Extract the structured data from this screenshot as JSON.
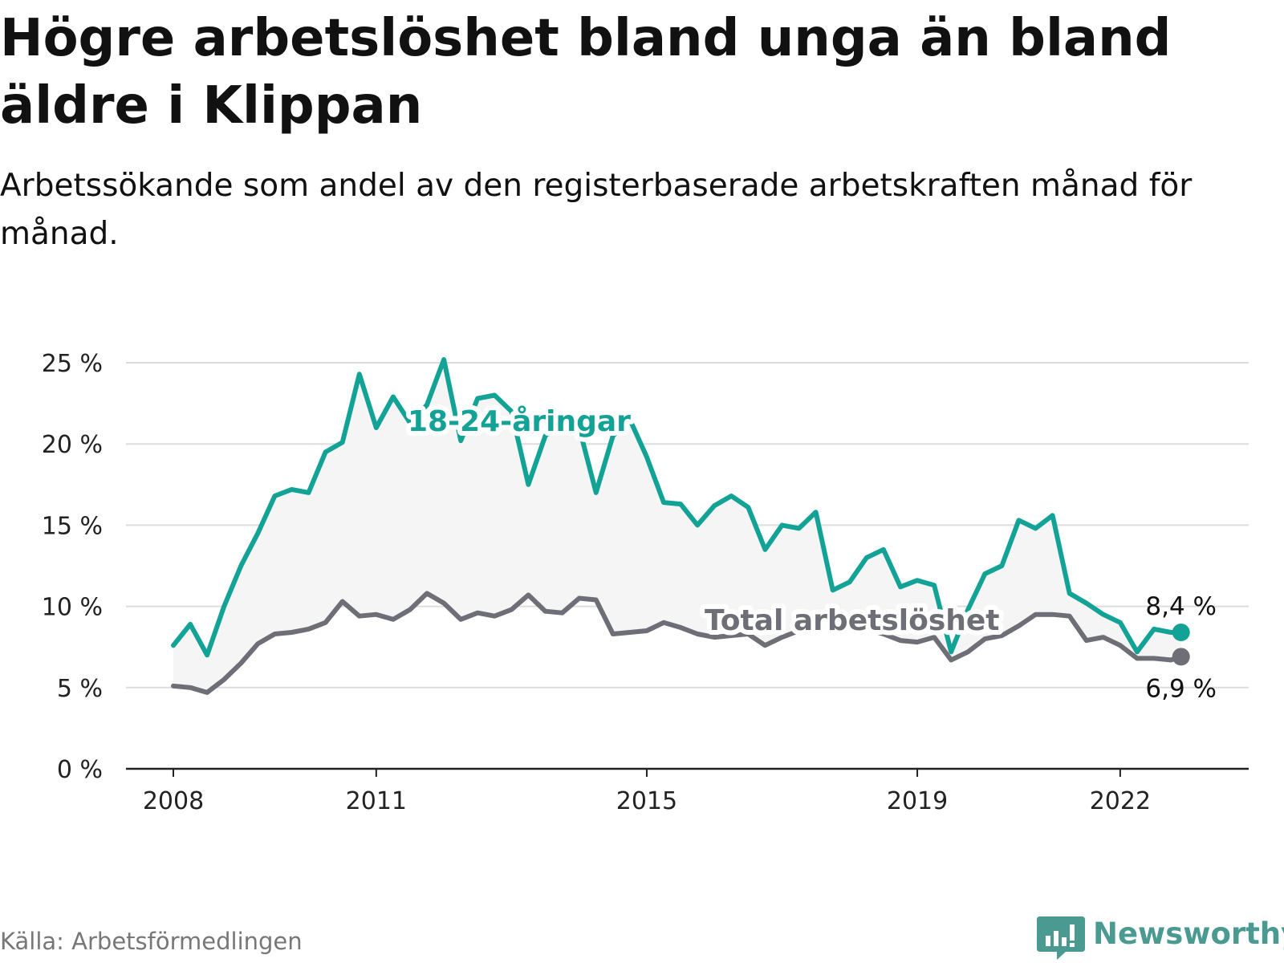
{
  "title": "Högre arbetslöshet bland unga än bland äldre i Klippan",
  "subtitle": "Arbetssökande som andel av den registerbaserade arbetskraften månad för månad.",
  "source": "Källa: Arbetsförmedlingen",
  "brand": {
    "name": "Newsworthy",
    "icon": "newsworthy-logo-icon"
  },
  "colors": {
    "youth": "#13a396",
    "total": "#6e6e76",
    "grid": "#dddddd",
    "area": "#f5f5f5",
    "brand": "#4a9a92"
  },
  "chart_data": {
    "type": "line",
    "title": "Högre arbetslöshet bland unga än bland äldre i Klippan",
    "xlabel": "",
    "ylabel": "",
    "ylim": [
      0,
      25
    ],
    "y_ticks": [
      0,
      5,
      10,
      15,
      20,
      25
    ],
    "y_tick_labels": [
      "0 %",
      "5 %",
      "10 %",
      "15 %",
      "20 %",
      "25 %"
    ],
    "x_ticks": [
      2008,
      2011,
      2015,
      2019,
      2022
    ],
    "x_tick_labels": [
      "2008",
      "2011",
      "2015",
      "2019",
      "2022"
    ],
    "xlim": [
      2007.3,
      2023.9
    ],
    "grid": true,
    "area_between_series": true,
    "series": [
      {
        "name": "18-24-åringar",
        "label": "18-24-åringar",
        "color": "#13a396",
        "end_label": "8,4 %",
        "x": [
          2008.0,
          2008.25,
          2008.5,
          2008.75,
          2009.0,
          2009.25,
          2009.5,
          2009.75,
          2010.0,
          2010.25,
          2010.5,
          2010.75,
          2011.0,
          2011.25,
          2011.5,
          2011.75,
          2012.0,
          2012.25,
          2012.5,
          2012.75,
          2013.0,
          2013.25,
          2013.5,
          2013.75,
          2014.0,
          2014.25,
          2014.5,
          2014.75,
          2015.0,
          2015.25,
          2015.5,
          2015.75,
          2016.0,
          2016.25,
          2016.5,
          2016.75,
          2017.0,
          2017.25,
          2017.5,
          2017.75,
          2018.0,
          2018.25,
          2018.5,
          2018.75,
          2019.0,
          2019.25,
          2019.5,
          2019.75,
          2020.0,
          2020.25,
          2020.5,
          2020.75,
          2021.0,
          2021.25,
          2021.5,
          2021.75,
          2022.0,
          2022.25,
          2022.5,
          2022.75,
          2022.9
        ],
        "values": [
          7.6,
          8.9,
          7.0,
          10.0,
          12.5,
          14.5,
          16.8,
          17.2,
          17.0,
          19.5,
          20.1,
          24.3,
          21.0,
          22.9,
          21.3,
          22.4,
          25.2,
          20.2,
          22.8,
          23.0,
          22.0,
          17.5,
          20.5,
          21.5,
          21.0,
          17.0,
          20.5,
          21.5,
          19.2,
          16.4,
          16.3,
          15.0,
          16.2,
          16.8,
          16.1,
          13.5,
          15.0,
          14.8,
          15.8,
          11.0,
          11.5,
          13.0,
          13.5,
          11.2,
          11.6,
          11.3,
          7.2,
          9.8,
          12.0,
          12.5,
          15.3,
          14.8,
          15.6,
          10.8,
          10.2,
          9.5,
          9.0,
          7.2,
          8.6,
          8.4,
          8.4
        ]
      },
      {
        "name": "Total arbetslöshet",
        "label": "Total arbetslöshet",
        "color": "#6e6e76",
        "end_label": "6,9 %",
        "x": [
          2008.0,
          2008.25,
          2008.5,
          2008.75,
          2009.0,
          2009.25,
          2009.5,
          2009.75,
          2010.0,
          2010.25,
          2010.5,
          2010.75,
          2011.0,
          2011.25,
          2011.5,
          2011.75,
          2012.0,
          2012.25,
          2012.5,
          2012.75,
          2013.0,
          2013.25,
          2013.5,
          2013.75,
          2014.0,
          2014.25,
          2014.5,
          2014.75,
          2015.0,
          2015.25,
          2015.5,
          2015.75,
          2016.0,
          2016.25,
          2016.5,
          2016.75,
          2017.0,
          2017.25,
          2017.5,
          2017.75,
          2018.0,
          2018.25,
          2018.5,
          2018.75,
          2019.0,
          2019.25,
          2019.5,
          2019.75,
          2020.0,
          2020.25,
          2020.5,
          2020.75,
          2021.0,
          2021.25,
          2021.5,
          2021.75,
          2022.0,
          2022.25,
          2022.5,
          2022.75,
          2022.9
        ],
        "values": [
          5.1,
          5.0,
          4.7,
          5.5,
          6.5,
          7.7,
          8.3,
          8.4,
          8.6,
          9.0,
          10.3,
          9.4,
          9.5,
          9.2,
          9.8,
          10.8,
          10.2,
          9.2,
          9.6,
          9.4,
          9.8,
          10.7,
          9.7,
          9.6,
          10.5,
          10.4,
          8.3,
          8.4,
          8.5,
          9.0,
          8.7,
          8.3,
          8.1,
          8.2,
          8.3,
          7.6,
          8.1,
          8.5,
          8.6,
          8.8,
          8.6,
          8.6,
          8.3,
          7.9,
          7.8,
          8.1,
          6.7,
          7.2,
          8.0,
          8.2,
          8.8,
          9.5,
          9.5,
          9.4,
          7.9,
          8.1,
          7.6,
          6.8,
          6.8,
          6.7,
          6.9
        ]
      }
    ]
  }
}
